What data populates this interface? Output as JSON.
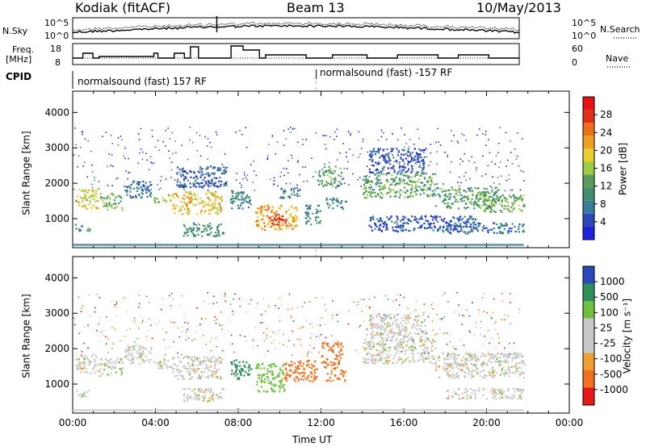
{
  "header": {
    "station": "Kodiak (fitACF)",
    "beam": "Beam 13",
    "date": "10/May/2013"
  },
  "panels": {
    "nsky_label": "N.Sky",
    "nsky_ticks": [
      "10^5",
      "10^0"
    ],
    "nsearch_label": "N.Search",
    "nsearch_ticks": [
      "10^5",
      "10^0"
    ],
    "freq_label_line1": "Freq.",
    "freq_label_line2": "[MHz]",
    "freq_ticks": [
      "18",
      "8"
    ],
    "nave_label": "Nave",
    "nave_ticks": [
      "60",
      "0"
    ],
    "cpid_label": "CPID",
    "cpid_segments": [
      "normalsound (fast) 157 RF",
      "normalsound (fast) -157 RF"
    ]
  },
  "axes": {
    "ylabel": "Slant Range [km]",
    "xlabel": "Time UT",
    "x_ticks": [
      "00:00",
      "04:00",
      "08:00",
      "12:00",
      "16:00",
      "20:00",
      "00:00"
    ],
    "y_ticks": [
      "1000",
      "2000",
      "3000",
      "4000"
    ]
  },
  "colorbars": {
    "power_label": "Power [dB]",
    "power_ticks": [
      "4",
      "8",
      "12",
      "16",
      "20",
      "24",
      "28"
    ],
    "velocity_label": "Velocity [m s⁻¹]",
    "velocity_ticks": [
      "-1000",
      "-500",
      "-100",
      "-25",
      "25",
      "100",
      "500",
      "1000"
    ]
  },
  "colors": {
    "power": [
      "#2020e0",
      "#2a48b8",
      "#3a7a9a",
      "#3f8f70",
      "#5a9a5a",
      "#9acc46",
      "#e8d030",
      "#f0a020",
      "#ec7018",
      "#e03018",
      "#e81010"
    ],
    "velocity": [
      "#e81818",
      "#f07020",
      "#f0a030",
      "#c8c8c8",
      "#c8c8c8",
      "#70c040",
      "#2f8f5a",
      "#2a48b8"
    ]
  },
  "chart_data": [
    {
      "type": "heatmap",
      "title": "Power",
      "xlabel": "Time UT",
      "ylabel": "Slant Range [km]",
      "xlim": [
        0,
        24
      ],
      "ylim": [
        180,
        4600
      ],
      "colorbar": {
        "label": "Power [dB]",
        "range": [
          0,
          32
        ]
      },
      "echo_regions": [
        {
          "t": [
            0.1,
            1.2
          ],
          "r": [
            1300,
            1850
          ],
          "v": 18
        },
        {
          "t": [
            0.1,
            0.9
          ],
          "r": [
            650,
            850
          ],
          "v": 10
        },
        {
          "t": [
            1.3,
            2.4
          ],
          "r": [
            1250,
            1750
          ],
          "v": 14
        },
        {
          "t": [
            2.5,
            3.8
          ],
          "r": [
            1600,
            2100
          ],
          "v": 8
        },
        {
          "t": [
            3.9,
            4.8
          ],
          "r": [
            1450,
            1750
          ],
          "v": 17
        },
        {
          "t": [
            4.8,
            7.2
          ],
          "r": [
            1150,
            1800
          ],
          "v": 20
        },
        {
          "t": [
            5.0,
            7.4
          ],
          "r": [
            1900,
            2500
          ],
          "v": 6
        },
        {
          "t": [
            5.3,
            7.3
          ],
          "r": [
            520,
            900
          ],
          "v": 10
        },
        {
          "t": [
            7.6,
            8.6
          ],
          "r": [
            1300,
            1800
          ],
          "v": 9
        },
        {
          "t": [
            8.8,
            10.8
          ],
          "r": [
            700,
            1400
          ],
          "v": 22
        },
        {
          "t": [
            9.5,
            10.3
          ],
          "r": [
            850,
            1150
          ],
          "v": 30
        },
        {
          "t": [
            10.0,
            11.0
          ],
          "r": [
            1600,
            1900
          ],
          "v": 8
        },
        {
          "t": [
            11.2,
            12.0
          ],
          "r": [
            850,
            1400
          ],
          "v": 9
        },
        {
          "t": [
            11.8,
            13.0
          ],
          "r": [
            1900,
            2500
          ],
          "v": 12
        },
        {
          "t": [
            12.2,
            13.2
          ],
          "r": [
            1300,
            1600
          ],
          "v": 9
        },
        {
          "t": [
            14.0,
            17.5
          ],
          "r": [
            1600,
            2300
          ],
          "v": 13
        },
        {
          "t": [
            14.3,
            17.0
          ],
          "r": [
            2300,
            3000
          ],
          "v": 5
        },
        {
          "t": [
            14.3,
            19.5
          ],
          "r": [
            650,
            1100
          ],
          "v": 5
        },
        {
          "t": [
            17.5,
            20.5
          ],
          "r": [
            1300,
            1900
          ],
          "v": 12
        },
        {
          "t": [
            19.8,
            21.8
          ],
          "r": [
            1200,
            1700
          ],
          "v": 14
        },
        {
          "t": [
            18.0,
            21.8
          ],
          "r": [
            600,
            900
          ],
          "v": 7
        }
      ]
    },
    {
      "type": "heatmap",
      "title": "Velocity",
      "xlabel": "Time UT",
      "ylabel": "Slant Range [km]",
      "xlim": [
        0,
        24
      ],
      "ylim": [
        180,
        4600
      ],
      "colorbar": {
        "label": "Velocity [m s⁻¹]",
        "range": [
          -1000,
          1000
        ]
      },
      "echo_regions": [
        {
          "t": [
            0.1,
            1.2
          ],
          "r": [
            1300,
            1850
          ],
          "v": 0
        },
        {
          "t": [
            0.1,
            0.9
          ],
          "r": [
            650,
            850
          ],
          "v": 0
        },
        {
          "t": [
            1.3,
            2.4
          ],
          "r": [
            1250,
            1750
          ],
          "v": 0
        },
        {
          "t": [
            2.5,
            3.8
          ],
          "r": [
            1600,
            2100
          ],
          "v": 0
        },
        {
          "t": [
            3.9,
            4.8
          ],
          "r": [
            1450,
            1750
          ],
          "v": 0
        },
        {
          "t": [
            4.8,
            7.2
          ],
          "r": [
            1150,
            1800
          ],
          "v": 0
        },
        {
          "t": [
            5.3,
            7.3
          ],
          "r": [
            520,
            900
          ],
          "v": 0
        },
        {
          "t": [
            7.6,
            8.6
          ],
          "r": [
            1150,
            1700
          ],
          "v": 200
        },
        {
          "t": [
            8.8,
            10.2
          ],
          "r": [
            800,
            1600
          ],
          "v": 60
        },
        {
          "t": [
            10.2,
            11.8
          ],
          "r": [
            1100,
            1700
          ],
          "v": -150
        },
        {
          "t": [
            12.0,
            13.0
          ],
          "r": [
            1500,
            2200
          ],
          "v": -250
        },
        {
          "t": [
            12.2,
            13.2
          ],
          "r": [
            1100,
            1500
          ],
          "v": -120
        },
        {
          "t": [
            14.0,
            17.5
          ],
          "r": [
            1600,
            2300
          ],
          "v": 0
        },
        {
          "t": [
            14.3,
            17.0
          ],
          "r": [
            2300,
            3000
          ],
          "v": 0
        },
        {
          "t": [
            17.5,
            21.8
          ],
          "r": [
            1200,
            1900
          ],
          "v": 0
        },
        {
          "t": [
            18.0,
            21.8
          ],
          "r": [
            600,
            900
          ],
          "v": 0
        }
      ]
    }
  ]
}
